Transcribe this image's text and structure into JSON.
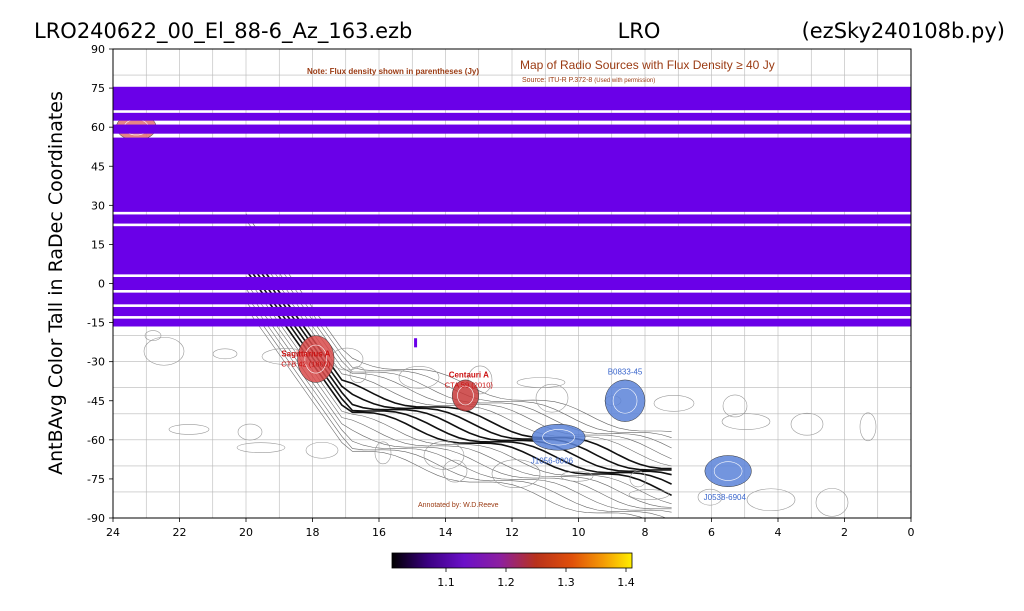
{
  "title": {
    "left": "LRO240622_00_El_88-6_Az_163.ezb",
    "center": "LRO",
    "right": "(ezSky240108b.py)"
  },
  "ylabel": "AntBAvg Color Tall in RaDec Coordinates",
  "background_map": {
    "note": "Note: Flux density shown in parentheses (Jy)",
    "heading": "Map of Radio Sources with Flux Density ≥ 40 Jy",
    "source": "Source: ITU-R P.372-8",
    "permission": "(Used with permission)",
    "credit": "Annotated by: W.D.Reeve",
    "labels": [
      {
        "text": "Sagittarius A",
        "sub": "CTB 42 (1800)",
        "ra": 18.2,
        "dec": -28,
        "color": "#cc1111"
      },
      {
        "text": "Centauri A",
        "sub": "CTA 59 (2010)",
        "ra": 13.3,
        "dec": -36,
        "color": "#cc1111"
      },
      {
        "text": "B0833-45",
        "sub": "",
        "ra": 8.6,
        "dec": -35,
        "color": "#3a66cc"
      },
      {
        "text": "J1056-6006",
        "sub": "",
        "ra": 10.8,
        "dec": -69,
        "color": "#3a66cc"
      },
      {
        "text": "J0538-6904",
        "sub": "",
        "ra": 5.6,
        "dec": -83,
        "color": "#3a66cc"
      }
    ],
    "sources": [
      {
        "ra": 17.9,
        "dec": -29,
        "rx": 0.55,
        "ry": 9,
        "color": "#d84a4a"
      },
      {
        "ra": 13.4,
        "dec": -43,
        "rx": 0.4,
        "ry": 6,
        "color": "#c83a3a"
      },
      {
        "ra": 8.6,
        "dec": -45,
        "rx": 0.6,
        "ry": 8,
        "color": "#5a82d8"
      },
      {
        "ra": 10.6,
        "dec": -59,
        "rx": 0.8,
        "ry": 5,
        "color": "#5a82d8"
      },
      {
        "ra": 5.5,
        "dec": -72,
        "rx": 0.7,
        "ry": 6,
        "color": "#5a82d8"
      },
      {
        "ra": 23.3,
        "dec": 60,
        "rx": 0.6,
        "ry": 5,
        "color": "#e07070"
      }
    ]
  },
  "colorbar": {
    "ticks": [
      "1.1",
      "1.2",
      "1.3",
      "1.4"
    ],
    "tick_values": [
      1.1,
      1.2,
      1.3,
      1.4
    ],
    "vmin": 1.01,
    "vmax": 1.41,
    "colormap": "gnuplot"
  },
  "chart_data": {
    "type": "heatmap",
    "title": "LRO240622_00_El_88-6_Az_163.ezb",
    "xlabel": "",
    "ylabel": "AntBAvg Color Tall in RaDec Coordinates",
    "xlim": [
      24,
      0
    ],
    "ylim": [
      -90,
      90
    ],
    "x_ticks": [
      "24",
      "22",
      "20",
      "18",
      "16",
      "14",
      "12",
      "10",
      "8",
      "6",
      "4",
      "2",
      "0"
    ],
    "x_tick_values": [
      24,
      22,
      20,
      18,
      16,
      14,
      12,
      10,
      8,
      6,
      4,
      2,
      0
    ],
    "y_ticks": [
      "90",
      "75",
      "60",
      "45",
      "30",
      "15",
      "0",
      "-15",
      "-30",
      "-45",
      "-60",
      "-75",
      "-90"
    ],
    "y_tick_values": [
      90,
      75,
      60,
      45,
      30,
      15,
      0,
      -15,
      -30,
      -45,
      -60,
      -75,
      -90
    ],
    "band_color": "#6a00e8",
    "bands": [
      {
        "dec_min": 66.5,
        "dec_max": 75.5,
        "value": 1.05
      },
      {
        "dec_min": 62.5,
        "dec_max": 65.5,
        "value": 1.05
      },
      {
        "dec_min": 57.5,
        "dec_max": 61.0,
        "value": 1.05
      },
      {
        "dec_min": 27.5,
        "dec_max": 56.0,
        "value": 1.05
      },
      {
        "dec_min": 23.0,
        "dec_max": 26.5,
        "value": 1.05
      },
      {
        "dec_min": 3.5,
        "dec_max": 22.0,
        "value": 1.05
      },
      {
        "dec_min": -2.5,
        "dec_max": 2.5,
        "value": 1.05
      },
      {
        "dec_min": -8.0,
        "dec_max": -3.5,
        "value": 1.05
      },
      {
        "dec_min": -12.5,
        "dec_max": -9.0,
        "value": 1.05
      },
      {
        "dec_min": -16.5,
        "dec_max": -13.5,
        "value": 1.05
      }
    ],
    "extra_points": [
      {
        "ra": 14.9,
        "dec_min": -24.5,
        "dec_max": -21.0,
        "value": 1.05
      }
    ]
  }
}
